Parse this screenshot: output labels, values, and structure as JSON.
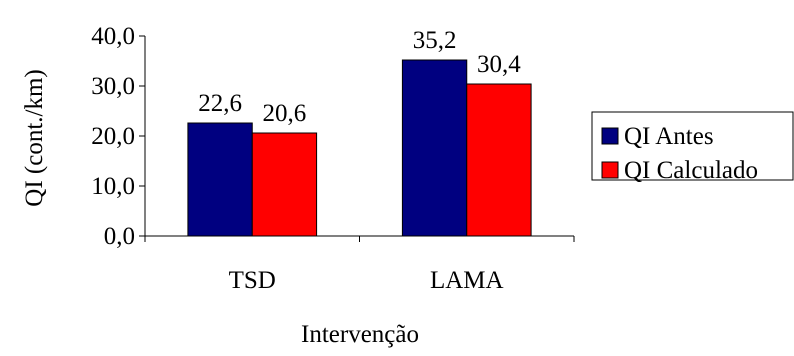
{
  "chart_data": {
    "type": "bar",
    "title": "",
    "xlabel": "Intervenção",
    "ylabel": "QI (cont./km)",
    "categories": [
      "TSD",
      "LAMA"
    ],
    "series": [
      {
        "name": "QI Antes",
        "values": [
          22.6,
          35.2
        ],
        "labels": [
          "22,6",
          "35,2"
        ],
        "color": "#000080"
      },
      {
        "name": "QI Calculado",
        "values": [
          20.6,
          30.4
        ],
        "labels": [
          "20,6",
          "30,4"
        ],
        "color": "#ff0000"
      }
    ],
    "ylim": [
      0,
      40
    ],
    "yticks": [
      0,
      10,
      20,
      30,
      40
    ],
    "ytick_labels": [
      "0,0",
      "10,0",
      "20,0",
      "30,0",
      "40,0"
    ],
    "grid": false,
    "legend_position": "right"
  }
}
